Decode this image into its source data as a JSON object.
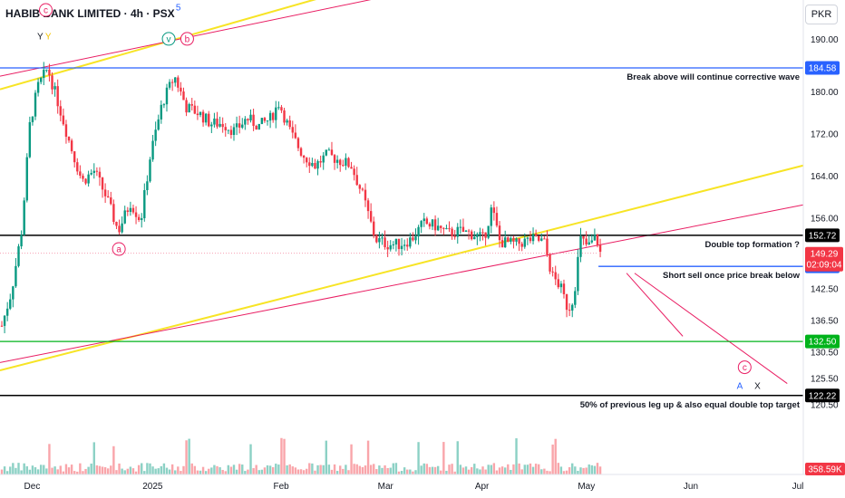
{
  "header": {
    "title": "HABIB BANK LIMITED · 4h · PSX",
    "currency": "PKR"
  },
  "colors": {
    "up": "#089981",
    "down": "#f23645",
    "yellow": "#f7e425",
    "pink": "#e91e63",
    "blue": "#2962ff",
    "green": "#00b31b",
    "black": "#000000"
  },
  "chart_data": {
    "type": "candlestick",
    "ylim": [
      116.5,
      197.5
    ],
    "y_ticks": [
      "190.00",
      "180.00",
      "172.00",
      "164.00",
      "156.00",
      "142.50",
      "136.50",
      "130.50",
      "125.50",
      "120.50"
    ],
    "x_ticks": [
      {
        "label": "Dec",
        "x": 0.04
      },
      {
        "label": "2025",
        "x": 0.19
      },
      {
        "label": "Feb",
        "x": 0.35
      },
      {
        "label": "Mar",
        "x": 0.48
      },
      {
        "label": "Apr",
        "x": 0.6
      },
      {
        "label": "May",
        "x": 0.73
      },
      {
        "label": "Jun",
        "x": 0.86
      },
      {
        "label": "Jul",
        "x": 1.0
      }
    ],
    "price_levels": [
      {
        "value": 184.58,
        "label": "184.58",
        "color": "#2962ff",
        "note": "Break above will continue corrective wave"
      },
      {
        "value": 152.72,
        "label": "152.72",
        "color": "#000000",
        "note": "Double top formation ?"
      },
      {
        "value": 146.8,
        "label": "146.80",
        "color": "#2962ff",
        "note": "Short sell once price break below"
      },
      {
        "value": 132.5,
        "label": "132.50",
        "color": "#00b31b",
        "note": ""
      },
      {
        "value": 122.22,
        "label": "122.22",
        "color": "#000000",
        "note": "50% of previous leg up & also equal double top target"
      }
    ],
    "current_price": {
      "value": 149.29,
      "label": "149.29",
      "countdown": "02:09:04"
    },
    "volume_last": {
      "label": "358.59K"
    },
    "wave_labels": [
      {
        "text": "c",
        "x": 0.057,
        "y": 195,
        "circle": true,
        "color": "#e91e63"
      },
      {
        "text": "Y",
        "x": 0.05,
        "y": 190,
        "color": "#131722"
      },
      {
        "text": "Y",
        "x": 0.06,
        "y": 190,
        "color": "#f5c400"
      },
      {
        "text": "5",
        "x": 0.222,
        "y": 195.5,
        "color": "#2962ff"
      },
      {
        "text": "v",
        "x": 0.21,
        "y": 189.5,
        "circle": true,
        "color": "#089981"
      },
      {
        "text": "b",
        "x": 0.233,
        "y": 189.5,
        "circle": true,
        "color": "#e91e63"
      },
      {
        "text": "a",
        "x": 0.148,
        "y": 149.5,
        "circle": true,
        "color": "#e91e63"
      },
      {
        "text": "c",
        "x": 0.927,
        "y": 127,
        "circle": true,
        "color": "#e91e63"
      },
      {
        "text": "A",
        "x": 0.921,
        "y": 123.5,
        "color": "#2962ff"
      },
      {
        "text": "X",
        "x": 0.943,
        "y": 123.5,
        "color": "#131722"
      }
    ],
    "candle_anchors": [
      [
        0,
        135.5
      ],
      [
        0.012,
        142
      ],
      [
        0.025,
        154
      ],
      [
        0.035,
        174
      ],
      [
        0.045,
        181
      ],
      [
        0.057,
        184.5
      ],
      [
        0.07,
        178
      ],
      [
        0.085,
        170
      ],
      [
        0.1,
        163
      ],
      [
        0.115,
        165
      ],
      [
        0.13,
        160
      ],
      [
        0.145,
        153.5
      ],
      [
        0.16,
        159
      ],
      [
        0.173,
        155.5
      ],
      [
        0.185,
        168
      ],
      [
        0.2,
        178
      ],
      [
        0.215,
        183
      ],
      [
        0.23,
        177
      ],
      [
        0.245,
        176
      ],
      [
        0.26,
        174
      ],
      [
        0.275,
        174
      ],
      [
        0.29,
        172.5
      ],
      [
        0.305,
        175
      ],
      [
        0.32,
        173.5
      ],
      [
        0.335,
        175
      ],
      [
        0.345,
        178
      ],
      [
        0.36,
        172
      ],
      [
        0.375,
        168
      ],
      [
        0.39,
        166
      ],
      [
        0.405,
        168
      ],
      [
        0.42,
        167
      ],
      [
        0.435,
        166
      ],
      [
        0.45,
        160
      ],
      [
        0.465,
        152
      ],
      [
        0.48,
        151
      ],
      [
        0.495,
        151
      ],
      [
        0.51,
        152
      ],
      [
        0.525,
        155
      ],
      [
        0.54,
        154.5
      ],
      [
        0.555,
        153
      ],
      [
        0.57,
        153.5
      ],
      [
        0.585,
        153
      ],
      [
        0.6,
        152
      ],
      [
        0.61,
        158
      ],
      [
        0.62,
        151.5
      ],
      [
        0.64,
        151
      ],
      [
        0.66,
        152
      ],
      [
        0.675,
        151.5
      ],
      [
        0.685,
        145
      ],
      [
        0.695,
        143
      ],
      [
        0.705,
        138.5
      ],
      [
        0.712,
        141
      ],
      [
        0.72,
        152
      ],
      [
        0.73,
        150.5
      ],
      [
        0.74,
        152.5
      ],
      [
        0.745,
        149.3
      ]
    ]
  },
  "drawings": {
    "yellow_top": [
      [
        0,
        180.5
      ],
      [
        0.47,
        201
      ]
    ],
    "pink_top": [
      [
        0,
        183
      ],
      [
        0.57,
        201
      ]
    ],
    "yellow_channel": [
      [
        0,
        127
      ],
      [
        1.0,
        166
      ]
    ],
    "pink_channel": [
      [
        0,
        128.5
      ],
      [
        1.0,
        158.5
      ]
    ],
    "projection_1": [
      [
        0.78,
        145.5
      ],
      [
        0.85,
        133.5
      ]
    ],
    "projection_2": [
      [
        0.79,
        145.5
      ],
      [
        0.98,
        124.5
      ]
    ],
    "pink_dotted": [
      [
        0,
        149.3
      ],
      [
        0.745,
        149.3
      ]
    ]
  }
}
